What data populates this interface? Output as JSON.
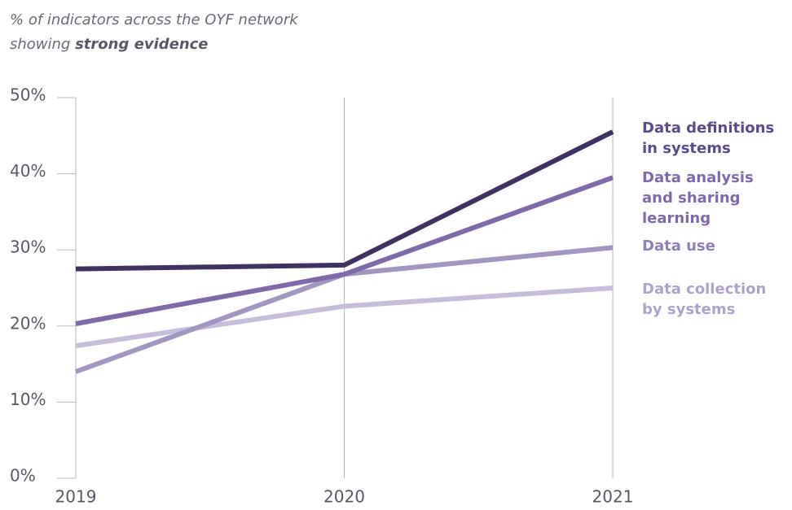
{
  "chart_data": {
    "type": "line",
    "title_line1": "% of indicators across the OYF network",
    "title_line2": "showing",
    "title_emphasis": "strong evidence",
    "categories": [
      "2019",
      "2020",
      "2021"
    ],
    "ylim": [
      0,
      50
    ],
    "yticks": [
      {
        "value": 0,
        "label": "0%"
      },
      {
        "value": 10,
        "label": "10%"
      },
      {
        "value": 20,
        "label": "20%"
      },
      {
        "value": 30,
        "label": "30%"
      },
      {
        "value": 40,
        "label": "40%"
      },
      {
        "value": 50,
        "label": "50%"
      }
    ],
    "series": [
      {
        "name": "Data definitions in systems",
        "color": "#3f3262",
        "label_color": "#5b4a8c",
        "values": [
          27.5,
          28,
          45.5
        ]
      },
      {
        "name": "Data analysis and sharing learning",
        "color": "#7e6aaa",
        "label_color": "#7e6aaa",
        "values": [
          20.3,
          26.8,
          39.5
        ]
      },
      {
        "name": "Data use",
        "color": "#a195c2",
        "label_color": "#8f80b8",
        "values": [
          14,
          26.8,
          30.3
        ]
      },
      {
        "name": "Data collection by systems",
        "color": "#c6bddc",
        "label_color": "#ad a2cc",
        "values": [
          17.4,
          22.6,
          25
        ]
      }
    ]
  }
}
